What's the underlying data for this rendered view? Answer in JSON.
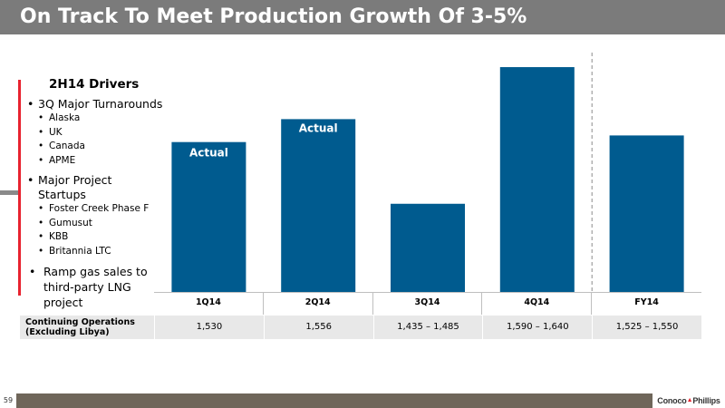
{
  "title": "On Track To Meet Production Growth Of 3-5%",
  "drivers": {
    "title": "2H14 Drivers",
    "groups": [
      {
        "label": "3Q Major Turnarounds",
        "items": [
          "Alaska",
          "UK",
          "Canada",
          "APME"
        ]
      },
      {
        "label": "Major Project Startups",
        "items": [
          "Foster Creek Phase F",
          "Gumusut",
          "KBB",
          "Britannia LTC"
        ]
      }
    ],
    "final_lines": [
      "Ramp gas sales to",
      "third-party LNG",
      "project"
    ]
  },
  "chart_data": {
    "type": "bar",
    "categories": [
      "1Q14",
      "2Q14",
      "3Q14",
      "4Q14",
      "FY14"
    ],
    "values": [
      1530,
      1556,
      1460,
      1615,
      1537.5
    ],
    "bar_labels": [
      "Actual",
      "Actual",
      "",
      "",
      ""
    ],
    "color": "#005b8f",
    "divider_before_category": "FY14",
    "ylim": [
      1360,
      1650
    ]
  },
  "table": {
    "row_label_line1": "Continuing Operations",
    "row_label_line2": "(Excluding Libya)",
    "values": [
      "1,530",
      "1,556",
      "1,435 – 1,485",
      "1,590 – 1,640",
      "1,525 – 1,550"
    ]
  },
  "footer": {
    "page": "59",
    "logo_text_a": "Conoco",
    "logo_text_b": "Phillips"
  },
  "colors": {
    "title_bar": "#7b7b7b",
    "accent": "#e8232f",
    "bar": "#005b8f",
    "table_row": "#e8e8e8",
    "footer_bar": "#6f665a"
  }
}
